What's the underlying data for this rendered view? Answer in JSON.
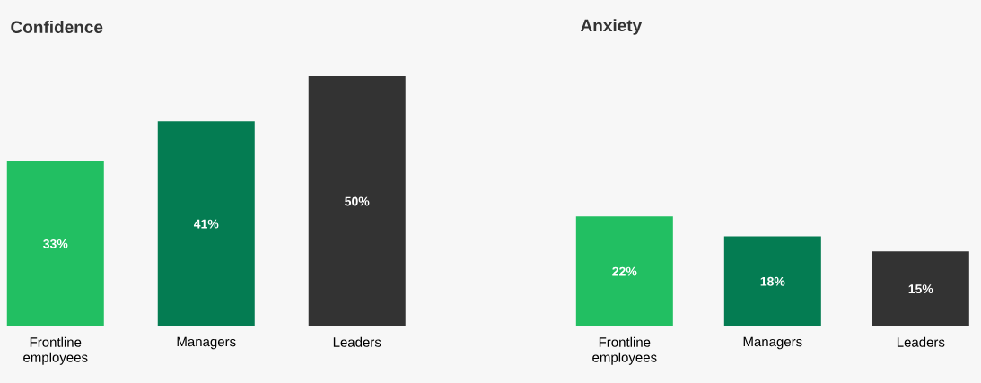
{
  "chart_data": [
    {
      "type": "bar",
      "title": "Confidence",
      "categories": [
        "Frontline employees",
        "Managers",
        "Leaders"
      ],
      "values": [
        33,
        41,
        50
      ],
      "colors": [
        "#22bf62",
        "#047c52",
        "#333333"
      ],
      "value_labels": [
        "33%",
        "41%",
        "50%"
      ]
    },
    {
      "type": "bar",
      "title": "Anxiety",
      "categories": [
        "Frontline employees",
        "Managers",
        "Leaders"
      ],
      "values": [
        22,
        18,
        15
      ],
      "colors": [
        "#22bf62",
        "#047c52",
        "#333333"
      ],
      "value_labels": [
        "22%",
        "18%",
        "15%"
      ]
    }
  ]
}
